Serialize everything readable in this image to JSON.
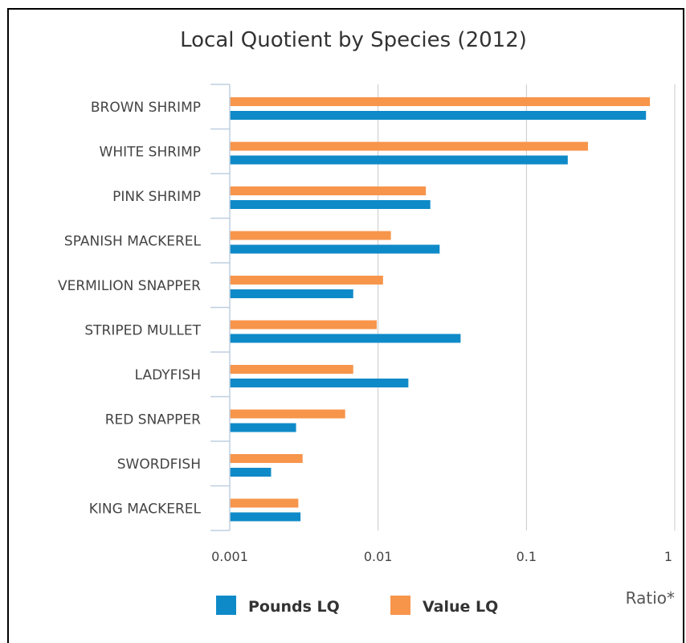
{
  "chart_data": {
    "type": "bar",
    "orientation": "horizontal",
    "title": "Local Quotient by Species (2012)",
    "xlabel": "Ratio*",
    "x_scale": "log",
    "xlim": [
      0.001,
      1
    ],
    "x_ticks": [
      "0.001",
      "0.01",
      "0.1",
      "1"
    ],
    "grid": true,
    "legend_position": "bottom-left",
    "categories": [
      "BROWN SHRIMP",
      "WHITE SHRIMP",
      "PINK SHRIMP",
      "SPANISH MACKEREL",
      "VERMILION SNAPPER",
      "STRIPED MULLET",
      "LADYFISH",
      "RED SNAPPER",
      "SWORDFISH",
      "KING MACKEREL"
    ],
    "series": [
      {
        "name": "Value LQ",
        "color": "#f7954b",
        "values": [
          0.68,
          0.26,
          0.021,
          0.0122,
          0.0108,
          0.0098,
          0.0068,
          0.006,
          0.0031,
          0.0029
        ]
      },
      {
        "name": "Pounds LQ",
        "color": "#0f8ac8",
        "values": [
          0.64,
          0.19,
          0.0225,
          0.026,
          0.0068,
          0.036,
          0.016,
          0.0028,
          0.0019,
          0.003
        ]
      }
    ]
  }
}
